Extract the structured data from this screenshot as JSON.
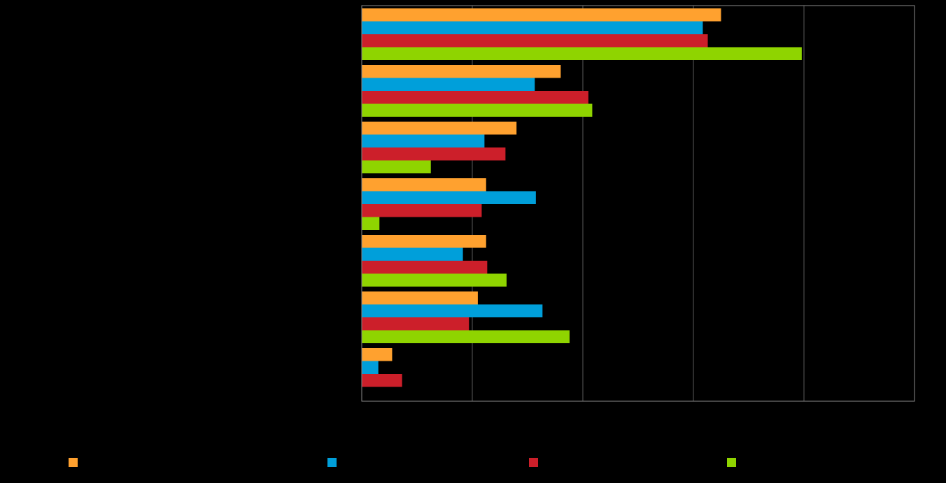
{
  "chart_data": {
    "type": "bar",
    "orientation": "horizontal",
    "categories": [
      "",
      "",
      "",
      "",
      "",
      "",
      ""
    ],
    "series": [
      {
        "name": "",
        "color": "#FFA12F",
        "values": [
          65,
          36,
          28,
          22.5,
          22.5,
          21,
          5.5
        ]
      },
      {
        "name": "",
        "color": "#009FDA",
        "values": [
          61.7,
          31.3,
          22.2,
          31.5,
          18.3,
          32.7,
          3
        ]
      },
      {
        "name": "",
        "color": "#CC1F2A",
        "values": [
          62.6,
          41,
          26,
          21.7,
          22.7,
          19.4,
          7.3
        ]
      },
      {
        "name": "",
        "color": "#8FD400",
        "values": [
          79.6,
          41.7,
          12.5,
          3.2,
          26.2,
          37.6,
          null
        ]
      }
    ],
    "xlim": [
      0,
      100
    ],
    "grid": true,
    "legend_position": "bottom",
    "title": "",
    "xlabel": "",
    "ylabel": ""
  }
}
